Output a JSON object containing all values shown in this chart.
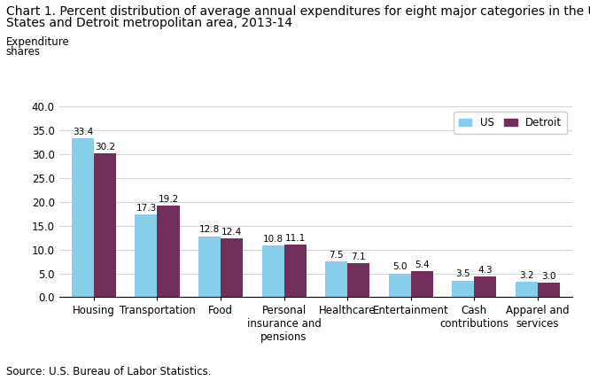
{
  "title_line1": "Chart 1. Percent distribution of average annual expenditures for eight major categories in the United",
  "title_line2": "States and Detroit metropolitan area, 2013-14",
  "ylabel_line1": "Expenditure",
  "ylabel_line2": "shares",
  "source": "Source: U.S. Bureau of Labor Statistics.",
  "categories": [
    "Housing",
    "Transportation",
    "Food",
    "Personal\ninsurance and\npensions",
    "Healthcare",
    "Entertainment",
    "Cash\ncontributions",
    "Apparel and\nservices"
  ],
  "us_values": [
    33.4,
    17.3,
    12.8,
    10.8,
    7.5,
    5.0,
    3.5,
    3.2
  ],
  "detroit_values": [
    30.2,
    19.2,
    12.4,
    11.1,
    7.1,
    5.4,
    4.3,
    3.0
  ],
  "us_color": "#87CEEB",
  "detroit_color": "#722F5B",
  "ylim": [
    0,
    40
  ],
  "yticks": [
    0.0,
    5.0,
    10.0,
    15.0,
    20.0,
    25.0,
    30.0,
    35.0,
    40.0
  ],
  "bar_width": 0.35,
  "legend_labels": [
    "US",
    "Detroit"
  ],
  "title_fontsize": 10.0,
  "axis_fontsize": 8.5,
  "label_fontsize": 7.5,
  "source_fontsize": 8.5
}
